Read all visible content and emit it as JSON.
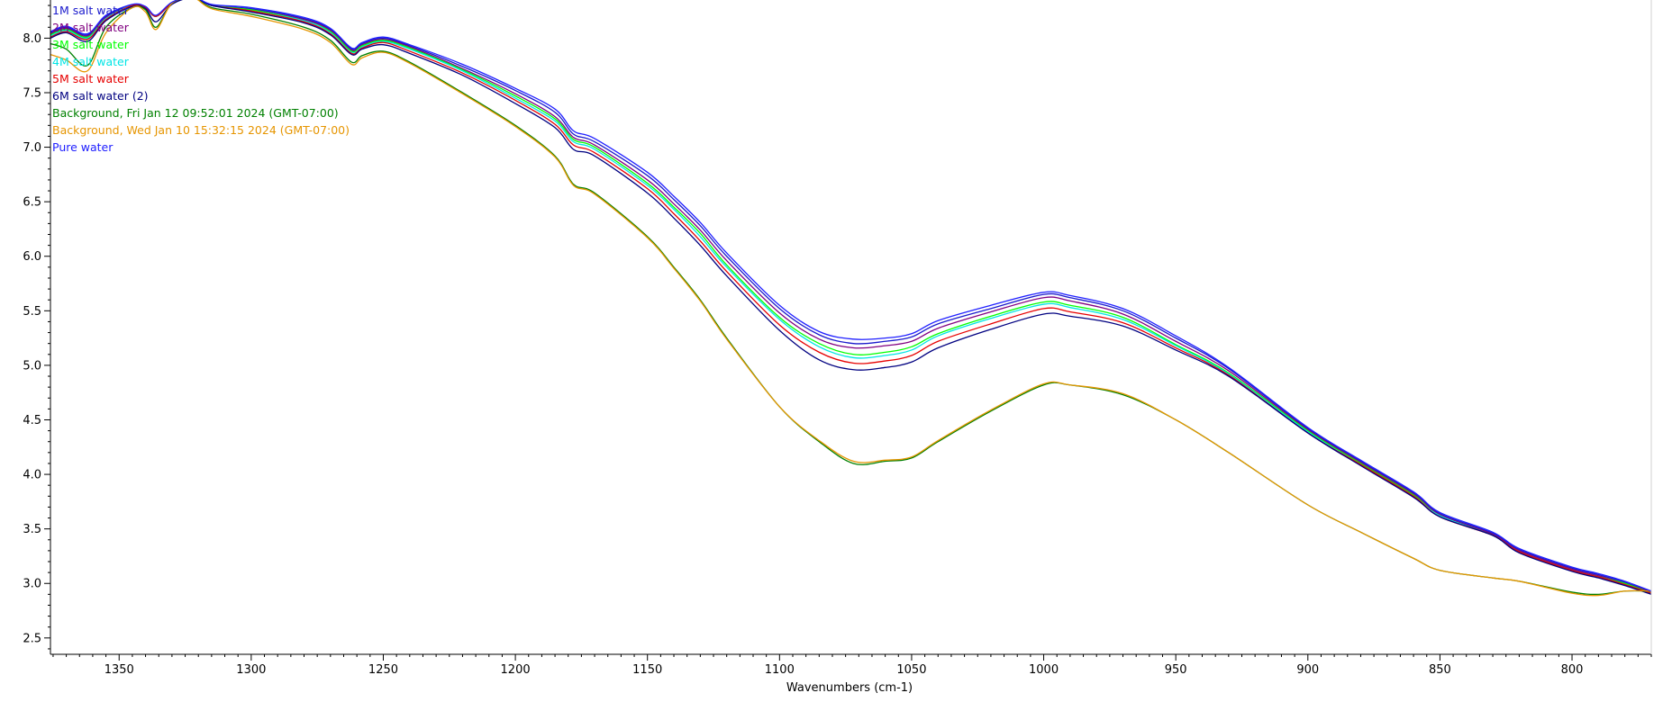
{
  "chart_data": {
    "type": "line",
    "title": "",
    "xlabel": "Wavenumbers (cm-1)",
    "ylabel": "",
    "xlim": [
      1376,
      770
    ],
    "ylim": [
      2.35,
      8.35
    ],
    "x_reversed": true,
    "grid": false,
    "legend_placement": "top-left",
    "x_ticks": [
      1350,
      1300,
      1250,
      1200,
      1150,
      1100,
      1050,
      1000,
      950,
      900,
      850,
      800
    ],
    "y_ticks": [
      2.5,
      3.0,
      3.5,
      4.0,
      4.5,
      5.0,
      5.5,
      6.0,
      6.5,
      7.0,
      7.5,
      8.0
    ],
    "x_tick_labels": [
      "1350",
      "1300",
      "1250",
      "1200",
      "1150",
      "1100",
      "1050",
      "1000",
      "950",
      "900",
      "850",
      "800"
    ],
    "y_tick_labels": [
      "2.5",
      "3.0",
      "3.5",
      "4.0",
      "4.5",
      "5.0",
      "5.5",
      "6.0",
      "6.5",
      "7.0",
      "7.5",
      "8.0"
    ],
    "x": [
      1376,
      1370,
      1362,
      1355,
      1345,
      1340,
      1336,
      1330,
      1322,
      1315,
      1300,
      1280,
      1270,
      1262,
      1258,
      1250,
      1240,
      1220,
      1200,
      1185,
      1178,
      1170,
      1150,
      1140,
      1130,
      1120,
      1100,
      1085,
      1072,
      1060,
      1050,
      1040,
      1020,
      1000,
      990,
      970,
      950,
      930,
      900,
      880,
      860,
      850,
      830,
      820,
      800,
      790,
      780,
      770
    ],
    "series": [
      {
        "name": "1M salt water",
        "color": "#1a1acc",
        "values": [
          8.05,
          8.1,
          8.03,
          8.2,
          8.3,
          8.28,
          8.2,
          8.32,
          8.38,
          8.3,
          8.27,
          8.18,
          8.08,
          7.9,
          7.95,
          8.0,
          7.93,
          7.74,
          7.52,
          7.32,
          7.12,
          7.05,
          6.74,
          6.52,
          6.28,
          6.0,
          5.52,
          5.28,
          5.2,
          5.22,
          5.26,
          5.38,
          5.52,
          5.65,
          5.62,
          5.5,
          5.25,
          4.97,
          4.42,
          4.12,
          3.83,
          3.64,
          3.46,
          3.31,
          3.14,
          3.08,
          3.01,
          2.92
        ]
      },
      {
        "name": "2M salt water",
        "color": "#800080",
        "values": [
          8.04,
          8.09,
          8.02,
          8.19,
          8.3,
          8.28,
          8.2,
          8.32,
          8.38,
          8.3,
          8.26,
          8.17,
          8.07,
          7.89,
          7.94,
          7.99,
          7.92,
          7.72,
          7.49,
          7.28,
          7.09,
          7.02,
          6.7,
          6.48,
          6.24,
          5.96,
          5.48,
          5.24,
          5.16,
          5.18,
          5.22,
          5.34,
          5.49,
          5.62,
          5.59,
          5.47,
          5.22,
          4.95,
          4.41,
          4.11,
          3.82,
          3.63,
          3.45,
          3.3,
          3.13,
          3.07,
          3.0,
          2.92
        ]
      },
      {
        "name": "3M salt water",
        "color": "#00ff00",
        "values": [
          8.03,
          8.08,
          8.01,
          8.18,
          8.3,
          8.28,
          8.2,
          8.32,
          8.38,
          8.3,
          8.26,
          8.16,
          8.06,
          7.88,
          7.93,
          7.98,
          7.91,
          7.71,
          7.47,
          7.26,
          7.07,
          7.0,
          6.67,
          6.45,
          6.21,
          5.92,
          5.44,
          5.2,
          5.1,
          5.12,
          5.17,
          5.29,
          5.45,
          5.58,
          5.55,
          5.44,
          5.19,
          4.93,
          4.4,
          4.1,
          3.81,
          3.62,
          3.44,
          3.29,
          3.12,
          3.06,
          3.0,
          2.91
        ]
      },
      {
        "name": "4M salt water",
        "color": "#00e5e5",
        "values": [
          8.02,
          8.07,
          8.0,
          8.18,
          8.3,
          8.28,
          8.2,
          8.32,
          8.38,
          8.3,
          8.25,
          8.16,
          8.05,
          7.87,
          7.92,
          7.97,
          7.9,
          7.7,
          7.45,
          7.24,
          7.05,
          6.98,
          6.65,
          6.43,
          6.18,
          5.9,
          5.42,
          5.17,
          5.07,
          5.09,
          5.14,
          5.27,
          5.43,
          5.56,
          5.53,
          5.42,
          5.18,
          4.92,
          4.39,
          4.09,
          3.8,
          3.62,
          3.44,
          3.29,
          3.12,
          3.06,
          2.99,
          2.91
        ]
      },
      {
        "name": "5M salt water",
        "color": "#e60000",
        "values": [
          8.01,
          8.06,
          7.99,
          8.17,
          8.3,
          8.28,
          8.2,
          8.32,
          8.38,
          8.3,
          8.25,
          8.15,
          8.04,
          7.86,
          7.91,
          7.96,
          7.88,
          7.68,
          7.43,
          7.21,
          7.02,
          6.95,
          6.62,
          6.39,
          6.14,
          5.86,
          5.37,
          5.12,
          5.02,
          5.04,
          5.09,
          5.22,
          5.38,
          5.52,
          5.49,
          5.39,
          5.16,
          4.91,
          4.38,
          4.09,
          3.8,
          3.61,
          3.44,
          3.29,
          3.12,
          3.06,
          2.99,
          2.91
        ]
      },
      {
        "name": "6M salt water (2)",
        "color": "#000080",
        "values": [
          8.0,
          8.05,
          7.97,
          8.16,
          8.29,
          8.27,
          8.15,
          8.31,
          8.37,
          8.3,
          8.24,
          8.14,
          8.03,
          7.85,
          7.9,
          7.94,
          7.86,
          7.66,
          7.4,
          7.18,
          6.98,
          6.92,
          6.58,
          6.35,
          6.1,
          5.82,
          5.32,
          5.05,
          4.96,
          4.98,
          5.03,
          5.16,
          5.33,
          5.47,
          5.45,
          5.36,
          5.14,
          4.9,
          4.38,
          4.08,
          3.79,
          3.61,
          3.44,
          3.28,
          3.11,
          3.05,
          2.98,
          2.9
        ]
      },
      {
        "name": "Background, Fri Jan 12 09:52:01 2024 (GMT-07:00)",
        "color": "#008000",
        "values": [
          7.95,
          7.9,
          7.75,
          8.1,
          8.28,
          8.26,
          8.1,
          8.32,
          8.37,
          8.28,
          8.22,
          8.1,
          7.98,
          7.78,
          7.84,
          7.88,
          7.78,
          7.5,
          7.2,
          6.92,
          6.66,
          6.58,
          6.18,
          5.9,
          5.6,
          5.25,
          4.62,
          4.3,
          4.1,
          4.12,
          4.15,
          4.3,
          4.58,
          4.82,
          4.82,
          4.73,
          4.5,
          4.2,
          3.72,
          3.47,
          3.23,
          3.12,
          3.05,
          3.02,
          2.92,
          2.9,
          2.93,
          2.93
        ]
      },
      {
        "name": "Background, Wed Jan 10 15:32:15 2024 (GMT-07:00)",
        "color": "#e69500",
        "values": [
          7.85,
          7.8,
          7.7,
          8.05,
          8.28,
          8.24,
          8.08,
          8.32,
          8.37,
          8.27,
          8.2,
          8.08,
          7.96,
          7.76,
          7.82,
          7.87,
          7.77,
          7.49,
          7.19,
          6.91,
          6.65,
          6.57,
          6.17,
          5.89,
          5.59,
          5.24,
          4.62,
          4.31,
          4.12,
          4.13,
          4.16,
          4.31,
          4.59,
          4.83,
          4.82,
          4.74,
          4.5,
          4.2,
          3.72,
          3.47,
          3.23,
          3.12,
          3.05,
          3.02,
          2.91,
          2.89,
          2.93,
          2.93
        ]
      },
      {
        "name": "Pure water",
        "color": "#2020ff",
        "values": [
          8.06,
          8.11,
          8.04,
          8.21,
          8.31,
          8.29,
          8.21,
          8.33,
          8.38,
          8.31,
          8.28,
          8.19,
          8.09,
          7.91,
          7.96,
          8.01,
          7.94,
          7.76,
          7.54,
          7.35,
          7.15,
          7.08,
          6.77,
          6.55,
          6.31,
          6.03,
          5.55,
          5.31,
          5.24,
          5.25,
          5.29,
          5.41,
          5.55,
          5.67,
          5.64,
          5.52,
          5.27,
          4.98,
          4.43,
          4.13,
          3.84,
          3.65,
          3.47,
          3.32,
          3.15,
          3.09,
          3.02,
          2.93
        ]
      }
    ]
  }
}
